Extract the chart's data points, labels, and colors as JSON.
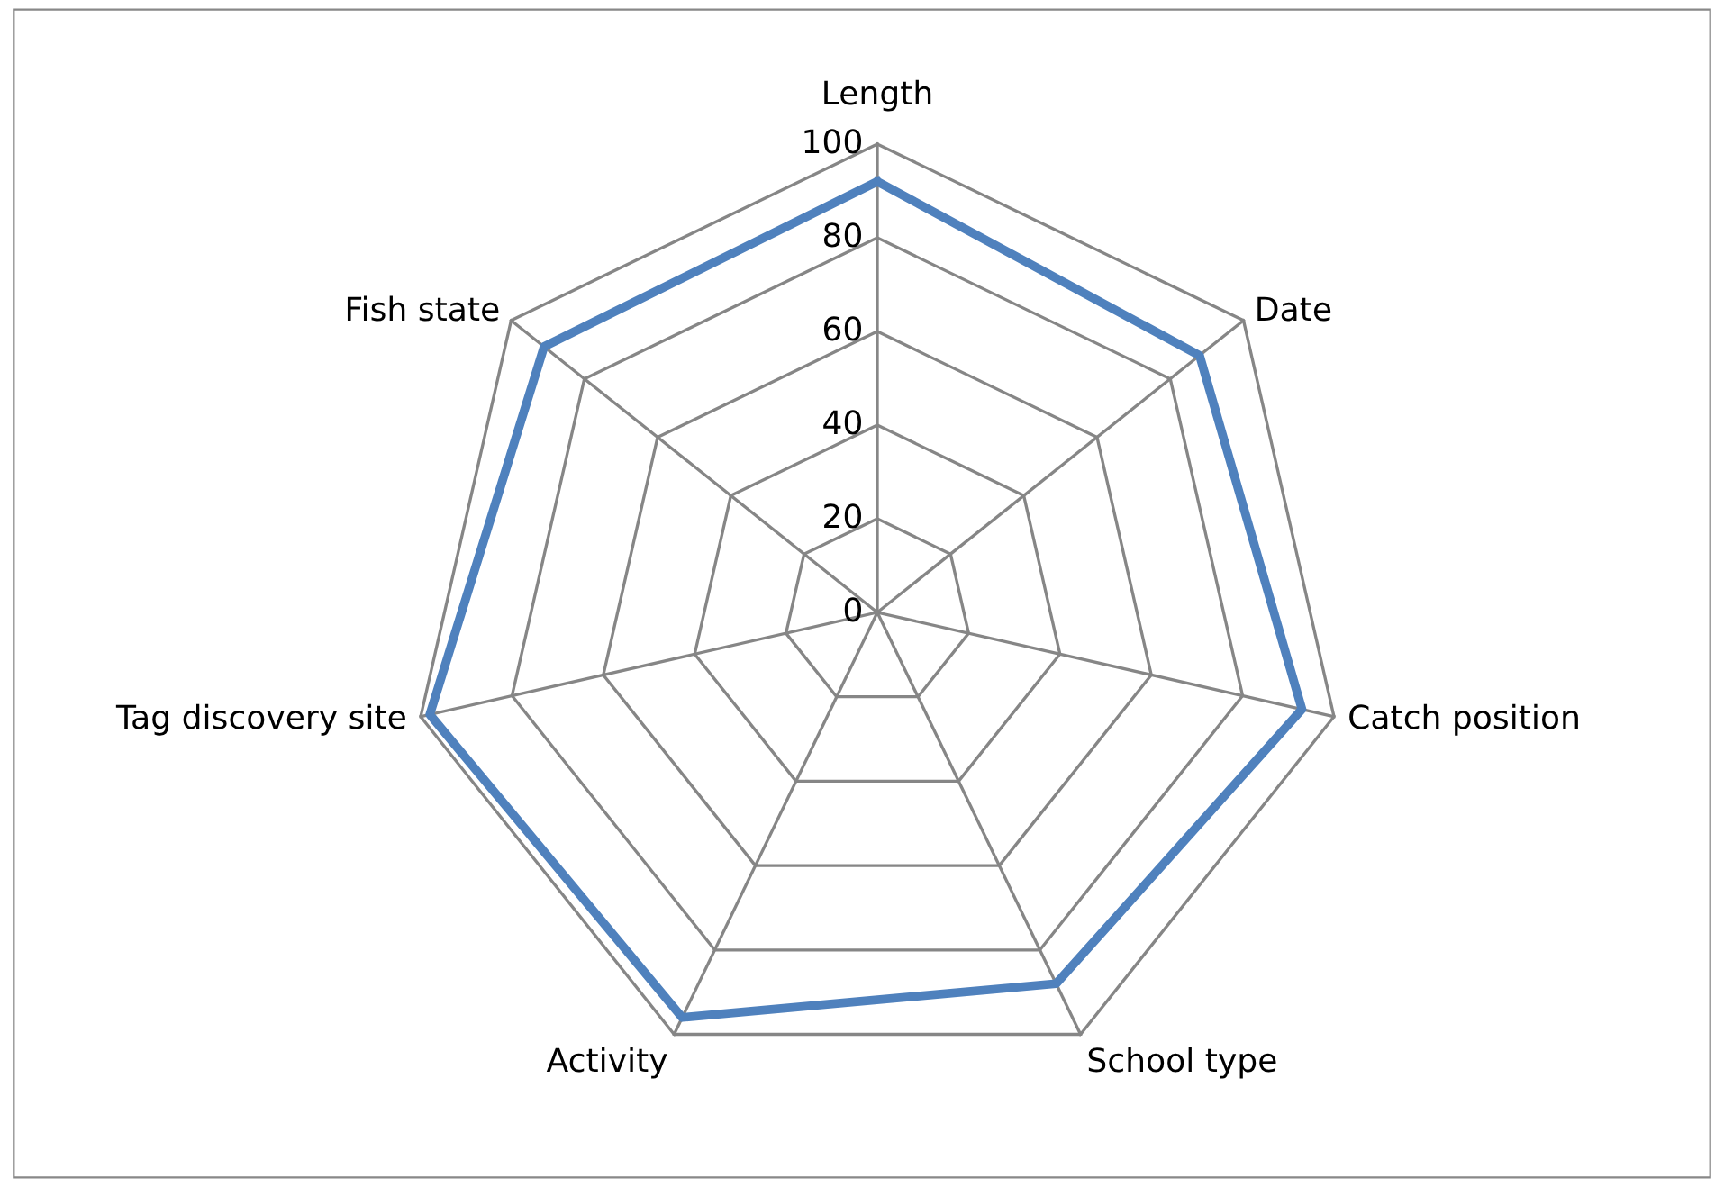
{
  "chart_data": {
    "type": "radar",
    "categories": [
      "Length",
      "Date",
      "Catch position",
      "School type",
      "Activity",
      "Tag discovery site",
      "Fish state"
    ],
    "series": [
      {
        "color": "#4f81bd",
        "values": [
          92,
          88,
          93,
          88,
          96,
          98,
          91
        ]
      }
    ],
    "ylim": [
      0,
      100
    ],
    "yticks": [
      0,
      20,
      40,
      60,
      80,
      100
    ],
    "grid": true,
    "marker": "none",
    "line_style": "solid"
  }
}
